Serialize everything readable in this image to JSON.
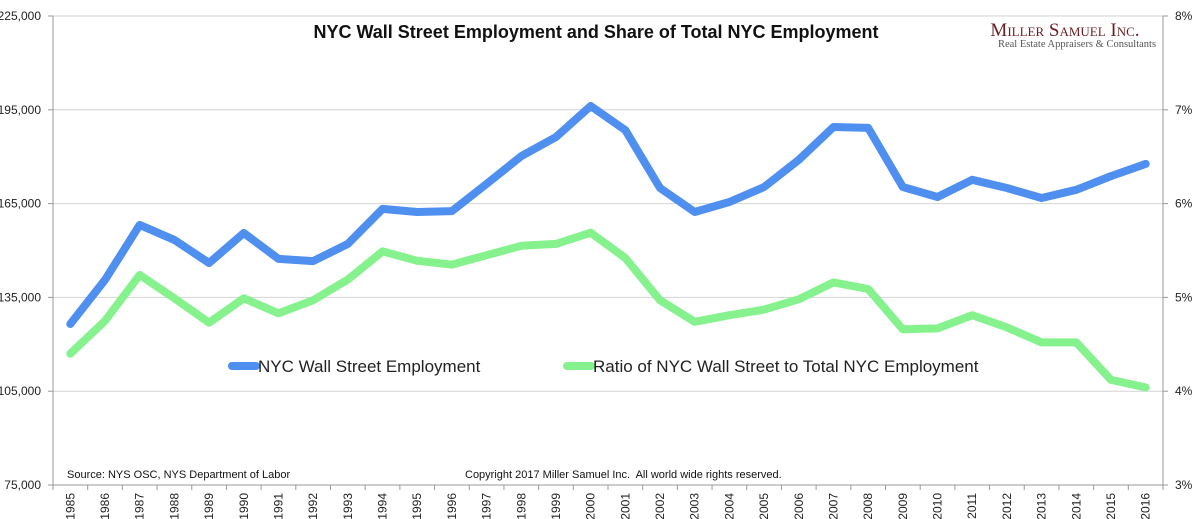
{
  "chart_data": {
    "type": "line",
    "title": "NYC Wall Street Employment and Share of Total NYC Employment",
    "x": [
      1985,
      1986,
      1987,
      1988,
      1989,
      1990,
      1991,
      1992,
      1993,
      1994,
      1995,
      1996,
      1997,
      1998,
      1999,
      2000,
      2001,
      2002,
      2003,
      2004,
      2005,
      2006,
      2007,
      2008,
      2009,
      2010,
      2011,
      2012,
      2013,
      2014,
      2015,
      2016
    ],
    "x_tick_labels": [
      "1985",
      "1986",
      "1987",
      "1988",
      "1989",
      "1990",
      "1991",
      "1992",
      "1993",
      "1994",
      "1995",
      "1996",
      "1997",
      "1998",
      "1999",
      "2000",
      "2001",
      "2002",
      "2003",
      "2004",
      "2005",
      "2006",
      "2007",
      "2008",
      "2009",
      "2010",
      "2011",
      "2012",
      "2013",
      "2014",
      "2015",
      "2016"
    ],
    "y_left": {
      "ylim": [
        75000,
        225000
      ],
      "ticks": [
        "75,000",
        "105,000",
        "135,000",
        "165,000",
        "195,000",
        "225,000"
      ]
    },
    "y_right": {
      "ylim": [
        3,
        8
      ],
      "ticks": [
        "3%",
        "4%",
        "5%",
        "6%",
        "7%",
        "8%"
      ]
    },
    "grid": true,
    "legend_position": "center",
    "series": [
      {
        "name": "NYC Wall Street Employment",
        "axis": "left",
        "color": "#4f8ff0",
        "values": [
          126500,
          140600,
          158200,
          153400,
          146000,
          155600,
          147300,
          146600,
          152100,
          163300,
          162300,
          162600,
          171300,
          180200,
          186300,
          196200,
          188500,
          170000,
          162300,
          165500,
          170300,
          179000,
          189500,
          189200,
          170300,
          167100,
          172600,
          170000,
          166800,
          169400,
          173800,
          177700
        ]
      },
      {
        "name": "Ratio of NYC Wall Street to Total NYC Employment",
        "axis": "right",
        "unit": "%",
        "color": "#86f28e",
        "values": [
          4.4,
          4.75,
          5.24,
          4.99,
          4.73,
          4.99,
          4.83,
          4.97,
          5.19,
          5.49,
          5.39,
          5.35,
          5.45,
          5.55,
          5.57,
          5.69,
          5.42,
          4.97,
          4.74,
          4.81,
          4.87,
          4.98,
          5.16,
          5.09,
          4.66,
          4.67,
          4.81,
          4.68,
          4.52,
          4.52,
          4.12,
          4.04
        ]
      }
    ],
    "annotations": {
      "source": "Source: NYS OSC, NYS Department of Labor",
      "copyright": "Copyright 2017 Miller Samuel Inc.  All world wide rights reserved."
    }
  },
  "logo": {
    "name": "Miller Samuel Inc.",
    "tagline": "Real Estate Appraisers & Consultants"
  }
}
